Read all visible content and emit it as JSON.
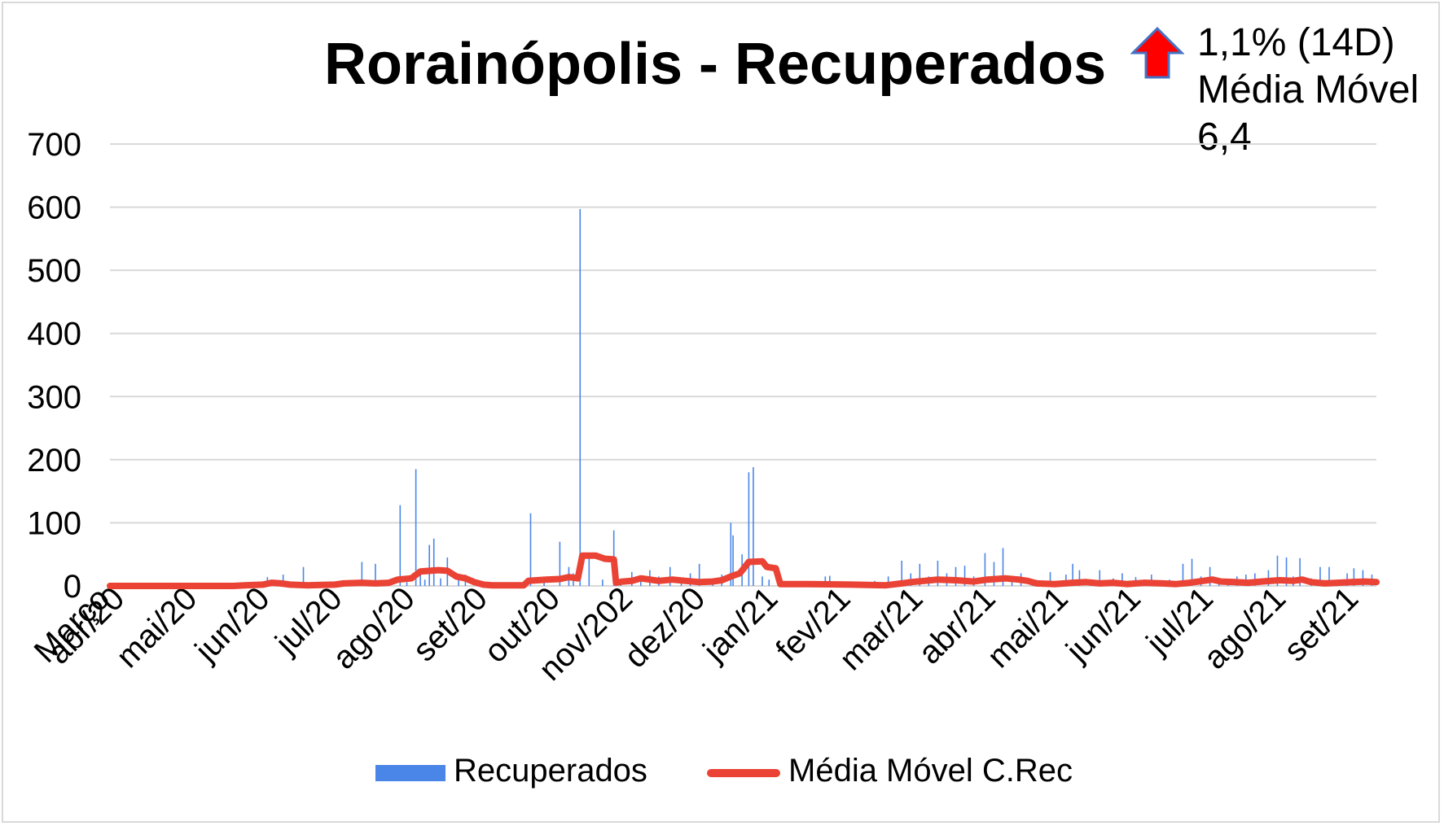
{
  "title": "Rorainópolis - Recuperados",
  "annotation": {
    "arrow_icon": "red-up-arrow-icon",
    "line1": "1,1% (14D)",
    "line2": "Média Móvel",
    "line3": "6,4"
  },
  "legend": {
    "bar_label": "Recuperados",
    "line_label": "Média Móvel C.Rec"
  },
  "colors": {
    "bars": "#4a86e8",
    "moving_average": "#ea4335",
    "grid": "#d9d9d9",
    "arrow_fill": "#ff0000",
    "arrow_stroke": "#4472c4"
  },
  "chart_data": {
    "type": "bar",
    "title": "Rorainópolis - Recuperados",
    "xlabel": "",
    "ylabel": "",
    "ylim": [
      0,
      700
    ],
    "yticks": [
      "0",
      "100",
      "200",
      "300",
      "400",
      "500",
      "600",
      "700"
    ],
    "xtick_labels": [
      "Março",
      "abr/20",
      "mai/20",
      "jun/20",
      "jul/20",
      "ago/20",
      "set/20",
      "out/20",
      "nov/202",
      "dez/20",
      "jan/21",
      "fev/21",
      "mar/21",
      "abr/21",
      "mai/21",
      "jun/21",
      "jul/21",
      "ago/21",
      "set/21"
    ],
    "grid": true,
    "legend_position": "bottom",
    "x_range_days": [
      0,
      563
    ],
    "series": [
      {
        "name": "Recuperados",
        "kind": "bar",
        "points": [
          [
            51,
            1
          ],
          [
            53,
            2
          ],
          [
            55,
            1
          ],
          [
            58,
            3
          ],
          [
            60,
            2
          ],
          [
            63,
            1
          ],
          [
            66,
            2
          ],
          [
            68,
            1
          ],
          [
            70,
            14
          ],
          [
            72,
            3
          ],
          [
            75,
            8
          ],
          [
            77,
            18
          ],
          [
            80,
            6
          ],
          [
            83,
            4
          ],
          [
            86,
            30
          ],
          [
            88,
            5
          ],
          [
            92,
            3
          ],
          [
            98,
            4
          ],
          [
            104,
            6
          ],
          [
            108,
            3
          ],
          [
            112,
            38
          ],
          [
            116,
            4
          ],
          [
            118,
            35
          ],
          [
            124,
            5
          ],
          [
            129,
            128
          ],
          [
            132,
            6
          ],
          [
            136,
            185
          ],
          [
            138,
            24
          ],
          [
            140,
            10
          ],
          [
            142,
            65
          ],
          [
            144,
            75
          ],
          [
            147,
            12
          ],
          [
            150,
            45
          ],
          [
            155,
            10
          ],
          [
            158,
            18
          ],
          [
            163,
            3
          ],
          [
            173,
            5
          ],
          [
            180,
            3
          ],
          [
            187,
            115
          ],
          [
            193,
            10
          ],
          [
            200,
            70
          ],
          [
            204,
            30
          ],
          [
            206,
            20
          ],
          [
            209,
            597
          ],
          [
            213,
            48
          ],
          [
            219,
            10
          ],
          [
            224,
            88
          ],
          [
            227,
            8
          ],
          [
            232,
            22
          ],
          [
            236,
            10
          ],
          [
            240,
            25
          ],
          [
            244,
            15
          ],
          [
            249,
            30
          ],
          [
            254,
            8
          ],
          [
            258,
            20
          ],
          [
            262,
            35
          ],
          [
            268,
            12
          ],
          [
            272,
            18
          ],
          [
            276,
            100
          ],
          [
            277,
            80
          ],
          [
            281,
            50
          ],
          [
            284,
            180
          ],
          [
            286,
            188
          ],
          [
            290,
            15
          ],
          [
            293,
            10
          ],
          [
            305,
            3
          ],
          [
            318,
            15
          ],
          [
            320,
            16
          ],
          [
            325,
            4
          ],
          [
            340,
            8
          ],
          [
            346,
            15
          ],
          [
            352,
            40
          ],
          [
            356,
            20
          ],
          [
            360,
            35
          ],
          [
            364,
            15
          ],
          [
            368,
            40
          ],
          [
            372,
            20
          ],
          [
            376,
            30
          ],
          [
            380,
            32
          ],
          [
            384,
            15
          ],
          [
            389,
            52
          ],
          [
            393,
            38
          ],
          [
            397,
            60
          ],
          [
            401,
            15
          ],
          [
            405,
            20
          ],
          [
            410,
            10
          ],
          [
            418,
            22
          ],
          [
            425,
            18
          ],
          [
            428,
            35
          ],
          [
            431,
            25
          ],
          [
            436,
            10
          ],
          [
            440,
            25
          ],
          [
            446,
            12
          ],
          [
            450,
            20
          ],
          [
            456,
            14
          ],
          [
            463,
            18
          ],
          [
            471,
            10
          ],
          [
            477,
            35
          ],
          [
            481,
            43
          ],
          [
            485,
            15
          ],
          [
            489,
            30
          ],
          [
            493,
            12
          ],
          [
            497,
            10
          ],
          [
            501,
            15
          ],
          [
            505,
            18
          ],
          [
            509,
            20
          ],
          [
            515,
            25
          ],
          [
            519,
            48
          ],
          [
            523,
            45
          ],
          [
            526,
            15
          ],
          [
            529,
            44
          ],
          [
            534,
            12
          ],
          [
            538,
            30
          ],
          [
            542,
            30
          ],
          [
            546,
            10
          ],
          [
            550,
            20
          ],
          [
            553,
            28
          ],
          [
            557,
            25
          ],
          [
            561,
            18
          ]
        ]
      },
      {
        "name": "Média Móvel C.Rec",
        "kind": "line",
        "points": [
          [
            0,
            0
          ],
          [
            55,
            0
          ],
          [
            60,
            1
          ],
          [
            68,
            2
          ],
          [
            72,
            5
          ],
          [
            76,
            4
          ],
          [
            80,
            2
          ],
          [
            88,
            1
          ],
          [
            100,
            2
          ],
          [
            104,
            4
          ],
          [
            112,
            5
          ],
          [
            118,
            4
          ],
          [
            124,
            5
          ],
          [
            128,
            10
          ],
          [
            134,
            12
          ],
          [
            138,
            23
          ],
          [
            146,
            25
          ],
          [
            150,
            24
          ],
          [
            154,
            15
          ],
          [
            158,
            12
          ],
          [
            162,
            6
          ],
          [
            166,
            2
          ],
          [
            170,
            1
          ],
          [
            184,
            1
          ],
          [
            186,
            8
          ],
          [
            194,
            10
          ],
          [
            200,
            11
          ],
          [
            204,
            14
          ],
          [
            208,
            12
          ],
          [
            210,
            48
          ],
          [
            216,
            48
          ],
          [
            220,
            43
          ],
          [
            224,
            42
          ],
          [
            225,
            5
          ],
          [
            228,
            7
          ],
          [
            232,
            8
          ],
          [
            236,
            12
          ],
          [
            240,
            10
          ],
          [
            244,
            8
          ],
          [
            250,
            10
          ],
          [
            256,
            8
          ],
          [
            262,
            6
          ],
          [
            268,
            7
          ],
          [
            272,
            9
          ],
          [
            276,
            15
          ],
          [
            280,
            20
          ],
          [
            284,
            38
          ],
          [
            290,
            39
          ],
          [
            292,
            30
          ],
          [
            296,
            28
          ],
          [
            298,
            3
          ],
          [
            310,
            3
          ],
          [
            330,
            2
          ],
          [
            345,
            1
          ],
          [
            352,
            4
          ],
          [
            356,
            6
          ],
          [
            362,
            8
          ],
          [
            368,
            10
          ],
          [
            376,
            9
          ],
          [
            384,
            7
          ],
          [
            390,
            10
          ],
          [
            398,
            12
          ],
          [
            404,
            10
          ],
          [
            408,
            8
          ],
          [
            412,
            4
          ],
          [
            420,
            3
          ],
          [
            428,
            5
          ],
          [
            434,
            6
          ],
          [
            440,
            4
          ],
          [
            446,
            5
          ],
          [
            452,
            3
          ],
          [
            460,
            5
          ],
          [
            468,
            4
          ],
          [
            474,
            3
          ],
          [
            480,
            5
          ],
          [
            486,
            8
          ],
          [
            490,
            10
          ],
          [
            494,
            7
          ],
          [
            500,
            6
          ],
          [
            506,
            5
          ],
          [
            512,
            7
          ],
          [
            520,
            9
          ],
          [
            526,
            8
          ],
          [
            530,
            10
          ],
          [
            534,
            6
          ],
          [
            540,
            4
          ],
          [
            546,
            5
          ],
          [
            552,
            6
          ],
          [
            558,
            7
          ],
          [
            563,
            6
          ]
        ]
      }
    ]
  }
}
